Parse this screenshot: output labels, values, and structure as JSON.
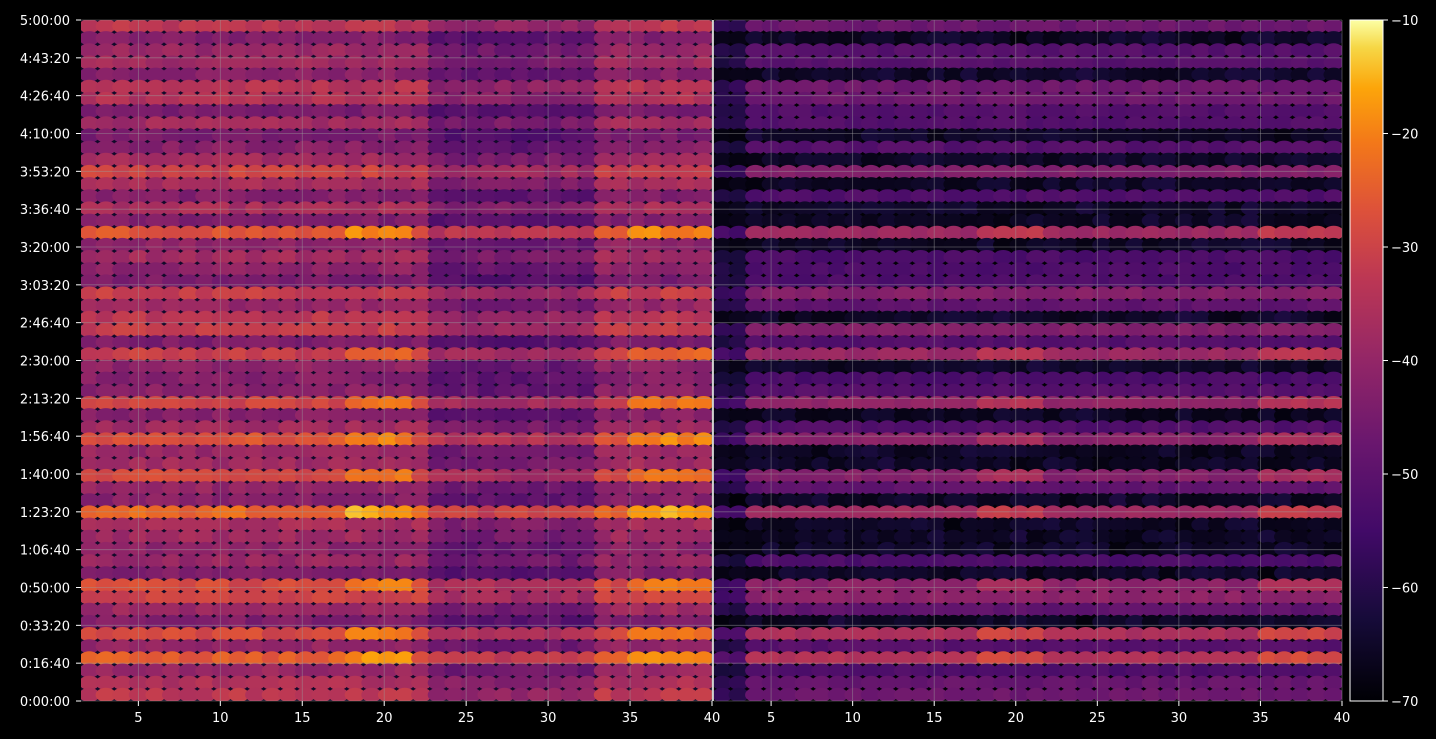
{
  "chart_data": {
    "type": "heatmap",
    "title": "",
    "panels": [
      {
        "name": "",
        "x_ticks": [
          5,
          10,
          15,
          20,
          25,
          30,
          35,
          40
        ],
        "xlim": [
          1.5,
          40
        ],
        "intensity": "high"
      },
      {
        "name": "",
        "x_ticks": [
          5,
          10,
          15,
          20,
          25,
          30,
          35,
          40
        ],
        "xlim": [
          1.5,
          40
        ],
        "intensity": "low"
      }
    ],
    "y_axis": {
      "range_seconds": [
        0,
        18000
      ],
      "tick_seconds": [
        0,
        1000,
        2000,
        3000,
        4000,
        5000,
        6000,
        7000,
        8000,
        9000,
        10000,
        11000,
        12000,
        13000,
        14000,
        15000,
        16000,
        17000,
        18000
      ],
      "tick_labels": [
        "0:00:00",
        "0:16:40",
        "0:33:20",
        "0:50:00",
        "1:06:40",
        "1:23:20",
        "1:40:00",
        "1:56:40",
        "2:13:20",
        "2:30:00",
        "2:46:40",
        "3:03:20",
        "3:20:00",
        "3:36:40",
        "3:53:20",
        "4:10:00",
        "4:26:40",
        "4:43:20",
        "5:00:00"
      ]
    },
    "colorbar": {
      "colormap": "inferno",
      "range": [
        -70,
        -10
      ],
      "ticks": [
        -10,
        -20,
        -30,
        -40,
        -50,
        -60,
        -70
      ],
      "tick_labels": [
        "−10",
        "−20",
        "−30",
        "−40",
        "−50",
        "−60",
        "−70"
      ]
    },
    "bright_rows_seconds": [
      0,
      1920,
      3900,
      5550,
      7350,
      8070,
      8930,
      10050,
      10230,
      11030,
      12150,
      13020,
      15000,
      15370,
      16280,
      16880,
      17720
    ],
    "grid": true,
    "colors": {
      "background": "#000000",
      "grid": "#9a9a9a",
      "divider": "#ffffff",
      "text": "#ffffff"
    }
  }
}
